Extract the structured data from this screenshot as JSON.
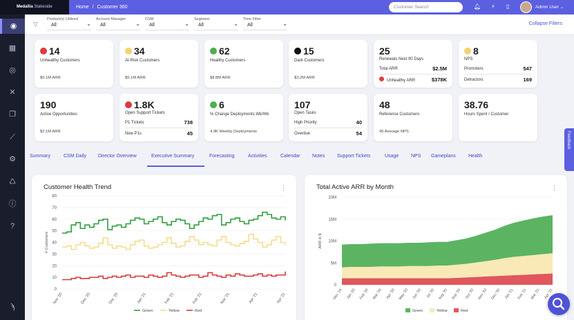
{
  "app": {
    "brand_name": "Medallia",
    "brand_product": "Stakeside"
  },
  "breadcrumb": {
    "home": "Home",
    "sep": "/",
    "page": "Customer 360"
  },
  "search": {
    "placeholder": "Customer Search"
  },
  "user": {
    "label": "Admin User ⌄"
  },
  "icons": {
    "bell": "bell-icon",
    "bolt": "bolt-icon",
    "phone": "phone-icon"
  },
  "filters": [
    {
      "label": "Product(s) Utilized",
      "value": "All"
    },
    {
      "label": "Account Manager",
      "value": "All"
    },
    {
      "label": "CSM",
      "value": "All"
    },
    {
      "label": "Segment",
      "value": "All"
    },
    {
      "label": "Time Filter",
      "value": "All"
    }
  ],
  "collapse_filters": "Collapse Filters",
  "kpis": {
    "unhealthy": {
      "value": "14",
      "label": "Unhealthy Customers",
      "sub": "$5.1M ARR",
      "dot": "#e03a3e"
    },
    "atrisk": {
      "value": "34",
      "label": "At-Risk Customers",
      "sub": "$5.1M ARR",
      "dot": "#f5d36b"
    },
    "healthy": {
      "value": "62",
      "label": "Healthy Customers",
      "sub": "$8.8M ARR",
      "dot": "#4caf50"
    },
    "dark": {
      "value": "15",
      "label": "Dark Customers",
      "sub": "$3.2M ARR",
      "dot": "#111111"
    },
    "renewals": {
      "value": "25",
      "label": "Renewals Next 90 Days",
      "row1_label": "Total ARR",
      "row1_value": "$2.5M",
      "row2_label": "Unhealthy ARR",
      "row2_value": "$378K"
    },
    "nps": {
      "value": "8",
      "label": "NPS",
      "dot": "#f5d36b",
      "row1_label": "Promoters",
      "row1_value": "547",
      "row2_label": "Detractors",
      "row2_value": "169"
    },
    "opps": {
      "value": "190",
      "label": "Active Opportunities",
      "sub": "$2.1M ARR"
    },
    "tickets": {
      "value": "1.8K",
      "label": "Open Support Tickets",
      "dot": "#e03a3e",
      "row1_label": "P1 Tickets",
      "row1_value": "738",
      "row2_label": "New P1s",
      "row2_value": "45"
    },
    "deploy": {
      "value": "6",
      "label": "% Change Deployments Wk/Wk",
      "sub": "4.9K Weekly Deployments",
      "dot": "#4caf50"
    },
    "tasks": {
      "value": "107",
      "label": "Open Tasks",
      "row1_label": "High Priority",
      "row1_value": "40",
      "row2_label": "Overdue",
      "row2_value": "54"
    },
    "refs": {
      "value": "48",
      "label": "Reference Customers",
      "sub": "45 Average NPS"
    },
    "hours": {
      "value": "38.76",
      "label": "Hours Spent / Customer"
    }
  },
  "tabs": [
    "Summary",
    "CSM Daily",
    "Director Overview",
    "Executive Summary",
    "Forecasting",
    "Activities",
    "Calendar",
    "Notes",
    "Support Tickets",
    "Usage",
    "NPS",
    "Gameplans",
    "Health"
  ],
  "active_tab": "Executive Summary",
  "feedback": "Feedback",
  "chart_data": [
    {
      "type": "line",
      "title": "Customer Health Trend",
      "xlabel": "",
      "ylabel": "# Customers",
      "ylim": [
        0,
        80
      ],
      "yticks": [
        0,
        10,
        20,
        30,
        40,
        50,
        60,
        70,
        80
      ],
      "x_tick_labels": [
        "Nov '20",
        "Dec '20",
        "Dec '20",
        "Jan '21",
        "Feb '21",
        "Feb '21",
        "Mar '21",
        "Apr '21",
        "Apr '21"
      ],
      "series": [
        {
          "name": "Green",
          "color": "#2e9e3c",
          "values": [
            48,
            49,
            55,
            57,
            52,
            55,
            53,
            56,
            59,
            60,
            51,
            54,
            55,
            53,
            56,
            59,
            61,
            60,
            56,
            58,
            60,
            62,
            57,
            55,
            58,
            60,
            59,
            56,
            52,
            55,
            58,
            61,
            60,
            63,
            64,
            55,
            57,
            60,
            61,
            58,
            56,
            59,
            60,
            63,
            66,
            64,
            61,
            60,
            62,
            59
          ]
        },
        {
          "name": "Yellow",
          "color": "#f5dc8a",
          "values": [
            36,
            37,
            34,
            38,
            40,
            37,
            35,
            36,
            39,
            44,
            38,
            35,
            37,
            36,
            34,
            38,
            41,
            42,
            37,
            35,
            36,
            38,
            40,
            44,
            39,
            36,
            37,
            41,
            45,
            42,
            38,
            40,
            38,
            37,
            42,
            45,
            40,
            38,
            37,
            39,
            41,
            47,
            43,
            40,
            36,
            38,
            42,
            45,
            40,
            38
          ]
        },
        {
          "name": "Red",
          "color": "#d83a3a",
          "values": [
            8,
            8,
            9,
            10,
            9,
            9,
            10,
            10,
            11,
            9,
            10,
            11,
            10,
            11,
            12,
            10,
            11,
            11,
            10,
            12,
            11,
            10,
            11,
            14,
            12,
            11,
            10,
            11,
            12,
            12,
            10,
            11,
            14,
            12,
            11,
            10,
            12,
            11,
            13,
            12,
            11,
            11,
            12,
            13,
            11,
            12,
            11,
            12,
            12,
            15
          ]
        }
      ]
    },
    {
      "type": "area",
      "title": "Total Active ARR by Month",
      "xlabel": "",
      "ylabel": "ARR in $",
      "ylim": [
        0,
        20000000
      ],
      "ytick_labels": [
        "0",
        "5M",
        "10M",
        "15M",
        "20M"
      ],
      "x_tick_labels": [
        "Dec '19",
        "Jan '20",
        "Feb '20",
        "Mar '20",
        "Apr '20",
        "May '20",
        "Jun '20",
        "Jul '20",
        "Aug '20",
        "Sep '20",
        "Oct '20",
        "Nov '20",
        "Dec '20",
        "Jan '21",
        "Feb '21",
        "Mar '21",
        "Apr '21"
      ],
      "series": [
        {
          "name": "Red",
          "color": "#e0575d",
          "values": [
            1.5,
            1.5,
            1.5,
            1.5,
            1.5,
            1.5,
            1.5,
            1.5,
            1.5,
            1.5,
            1.5,
            1.5,
            1.6,
            1.7,
            1.8,
            1.9,
            2.0,
            2.1,
            2.2,
            2.3,
            2.4,
            2.5,
            2.6
          ]
        },
        {
          "name": "Yellow",
          "color": "#f8e9b7",
          "values": [
            2.5,
            2.6,
            2.6,
            2.6,
            2.7,
            2.7,
            2.7,
            2.8,
            2.8,
            2.8,
            2.9,
            2.9,
            3.0,
            3.1,
            3.3,
            3.5,
            3.7,
            4.0,
            4.2,
            4.3,
            4.4,
            4.5,
            4.6
          ]
        },
        {
          "name": "Green",
          "color": "#5cb463",
          "values": [
            5.2,
            5.2,
            5.2,
            5.3,
            5.3,
            5.3,
            5.3,
            5.3,
            5.3,
            5.4,
            5.4,
            5.4,
            5.6,
            5.8,
            6.1,
            6.5,
            6.9,
            7.4,
            7.8,
            8.1,
            8.4,
            8.6,
            8.7
          ]
        }
      ]
    }
  ]
}
